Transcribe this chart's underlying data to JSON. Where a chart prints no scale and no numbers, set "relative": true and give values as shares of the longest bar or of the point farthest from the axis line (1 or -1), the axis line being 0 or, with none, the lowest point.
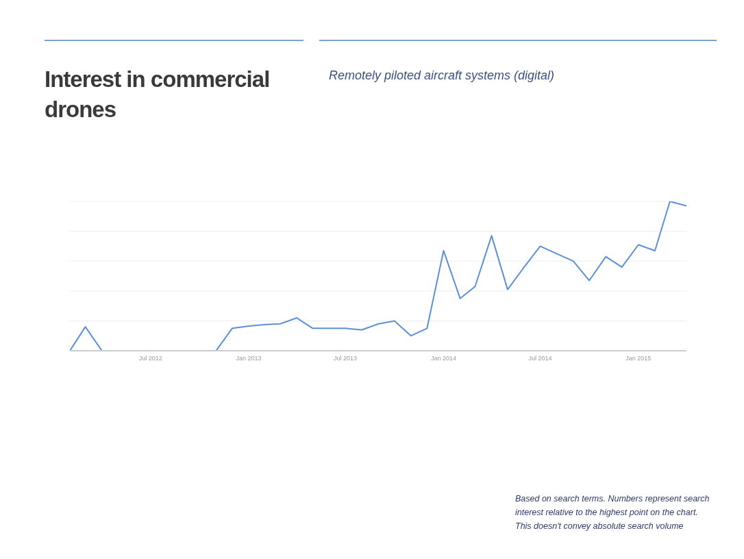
{
  "chart_data": {
    "type": "line",
    "title": "Interest in commercial drones",
    "subtitle": "Remotely piloted aircraft systems (digital)",
    "annotations": [
      "Based on search terms. Numbers represent search interest relative to the highest point on the chart. This doesn't convey absolute search volume"
    ],
    "relative": true,
    "grid": "y",
    "marker": "none",
    "line_style": "solid",
    "x": [
      "2012-02",
      "2012-03",
      "2012-04",
      "2012-05",
      "2012-06",
      "2012-07",
      "2012-08",
      "2012-09",
      "2012-10",
      "2012-11",
      "2012-12",
      "2013-01",
      "2013-02",
      "2013-03",
      "2013-04",
      "2013-05",
      "2013-06",
      "2013-07",
      "2013-08",
      "2013-09",
      "2013-10",
      "2013-11",
      "2013-12",
      "2014-01",
      "2014-02",
      "2014-03",
      "2014-04",
      "2014-05",
      "2014-06",
      "2014-07",
      "2014-08",
      "2014-09",
      "2014-10",
      "2014-11",
      "2014-12",
      "2015-01",
      "2015-02",
      "2015-03",
      "2015-04"
    ],
    "xlim": [
      "2012-02",
      "2015-04"
    ],
    "xticks": [
      {
        "value": "2012-07",
        "label": "Jul 2012"
      },
      {
        "value": "2013-01",
        "label": "Jan 2013"
      },
      {
        "value": "2013-07",
        "label": "Jul 2013"
      },
      {
        "value": "2014-01",
        "label": "Jan 2014"
      },
      {
        "value": "2014-07",
        "label": "Jul 2014"
      },
      {
        "value": "2015-01",
        "label": "Jan 2015"
      }
    ],
    "series": [
      {
        "color": "#5b8fd6",
        "values": [
          0,
          0.16,
          0,
          0,
          0,
          0,
          0,
          0,
          0,
          0,
          0.15,
          0.165,
          0.175,
          0.18,
          0.22,
          0.15,
          0.15,
          0.15,
          0.14,
          0.18,
          0.2,
          0.1,
          0.15,
          0.67,
          0.35,
          0.43,
          0.77,
          0.41,
          0.56,
          0.7,
          0.65,
          0.6,
          0.47,
          0.63,
          0.56,
          0.71,
          0.67,
          1,
          0.97
        ]
      }
    ]
  }
}
